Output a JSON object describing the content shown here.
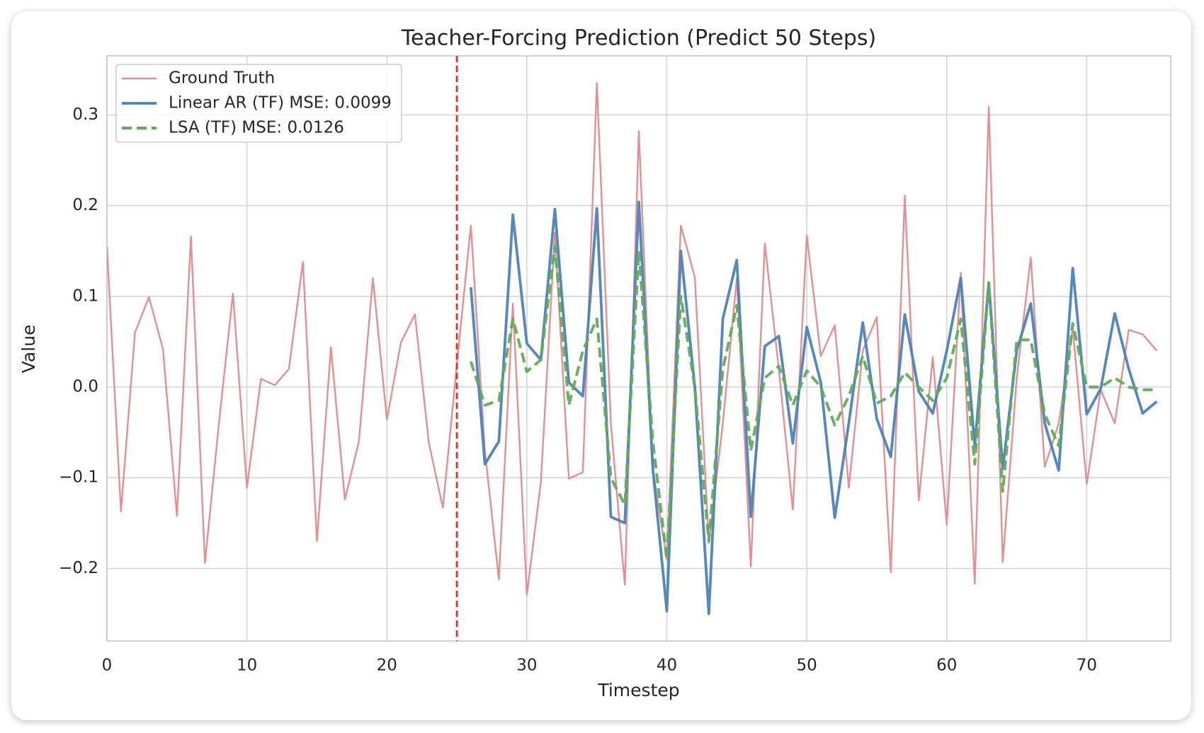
{
  "chart_data": {
    "type": "line",
    "title": "Teacher-Forcing Prediction (Predict 50 Steps)",
    "x_label": "Timestep",
    "y_label": "Value",
    "x": [
      0,
      1,
      2,
      3,
      4,
      5,
      6,
      7,
      8,
      9,
      10,
      11,
      12,
      13,
      14,
      15,
      16,
      17,
      18,
      19,
      20,
      21,
      22,
      23,
      24,
      25,
      26,
      27,
      28,
      29,
      30,
      31,
      32,
      33,
      34,
      35,
      36,
      37,
      38,
      39,
      40,
      41,
      42,
      43,
      44,
      45,
      46,
      47,
      48,
      49,
      50,
      51,
      52,
      53,
      54,
      55,
      56,
      57,
      58,
      59,
      60,
      61,
      62,
      63,
      64,
      65,
      66,
      67,
      68,
      69,
      70,
      71,
      72,
      73,
      74,
      75
    ],
    "series": [
      {
        "name": "Ground Truth",
        "color": "#e08a8c",
        "dash": false,
        "width": 2.4,
        "values": [
          0.155,
          -0.137,
          0.06,
          0.099,
          0.042,
          -0.142,
          0.166,
          -0.194,
          -0.04,
          0.103,
          -0.111,
          0.009,
          0.002,
          0.02,
          0.138,
          -0.17,
          0.044,
          -0.124,
          -0.06,
          0.12,
          -0.036,
          0.049,
          0.08,
          -0.062,
          -0.133,
          0.025,
          0.178,
          -0.07,
          -0.212,
          0.092,
          -0.229,
          -0.105,
          0.17,
          -0.101,
          -0.094,
          0.335,
          -0.04,
          -0.218,
          0.282,
          -0.09,
          -0.19,
          0.178,
          0.121,
          -0.172,
          -0.04,
          0.12,
          -0.198,
          0.158,
          0.02,
          -0.135,
          0.167,
          0.034,
          0.068,
          -0.111,
          0.04,
          0.077,
          -0.204,
          0.211,
          -0.125,
          0.033,
          -0.152,
          0.126,
          -0.217,
          0.309,
          -0.193,
          0.01,
          0.143,
          -0.088,
          -0.04,
          0.065,
          -0.107,
          -0.003,
          -0.04,
          0.063,
          0.058,
          0.04
        ]
      },
      {
        "name": "Linear AR (TF) MSE: 0.0099",
        "color": "#4c82b9",
        "dash": false,
        "width": 3.8,
        "values": [
          null,
          null,
          null,
          null,
          null,
          null,
          null,
          null,
          null,
          null,
          null,
          null,
          null,
          null,
          null,
          null,
          null,
          null,
          null,
          null,
          null,
          null,
          null,
          null,
          null,
          null,
          0.11,
          -0.085,
          -0.06,
          0.19,
          0.048,
          0.03,
          0.196,
          0.005,
          -0.01,
          0.197,
          -0.143,
          -0.15,
          0.204,
          -0.09,
          -0.247,
          0.15,
          0.0,
          -0.25,
          0.075,
          0.14,
          -0.143,
          0.045,
          0.056,
          -0.062,
          0.066,
          0.005,
          -0.144,
          -0.04,
          0.071,
          -0.035,
          -0.077,
          0.08,
          -0.005,
          -0.029,
          0.04,
          0.12,
          -0.065,
          0.115,
          -0.09,
          0.04,
          0.092,
          -0.04,
          -0.092,
          0.131,
          -0.03,
          -0.002,
          0.081,
          0.02,
          -0.029,
          -0.016
        ]
      },
      {
        "name": "LSA (TF) MSE: 0.0126",
        "color": "#5fad56",
        "dash": true,
        "width": 4,
        "values": [
          null,
          null,
          null,
          null,
          null,
          null,
          null,
          null,
          null,
          null,
          null,
          null,
          null,
          null,
          null,
          null,
          null,
          null,
          null,
          null,
          null,
          null,
          null,
          null,
          null,
          null,
          0.028,
          -0.02,
          -0.015,
          0.075,
          0.017,
          0.03,
          0.155,
          -0.02,
          0.04,
          0.075,
          -0.1,
          -0.13,
          0.15,
          -0.06,
          -0.19,
          0.1,
          0.0,
          -0.17,
          0.02,
          0.09,
          -0.07,
          0.01,
          0.023,
          -0.02,
          0.018,
          0.0,
          -0.042,
          -0.01,
          0.034,
          -0.018,
          -0.01,
          0.016,
          0.0,
          -0.015,
          0.01,
          0.075,
          -0.085,
          0.115,
          -0.115,
          0.052,
          0.052,
          -0.03,
          -0.065,
          0.07,
          0.0,
          0.0,
          0.01,
          0.0,
          -0.003,
          -0.003
        ]
      }
    ],
    "vline_x": 25,
    "vline_color": "#e0312a",
    "xlim": [
      0,
      76
    ],
    "ylim": [
      -0.28,
      0.365
    ],
    "xticks": [
      0,
      10,
      20,
      30,
      40,
      50,
      60,
      70
    ],
    "yticks": [
      {
        "value": -0.2,
        "label": "−0.2"
      },
      {
        "value": -0.1,
        "label": "−0.1"
      },
      {
        "value": 0,
        "label": "0.0"
      },
      0.1,
      0.2,
      0.3
    ],
    "grid": true,
    "legend": "upper left"
  }
}
